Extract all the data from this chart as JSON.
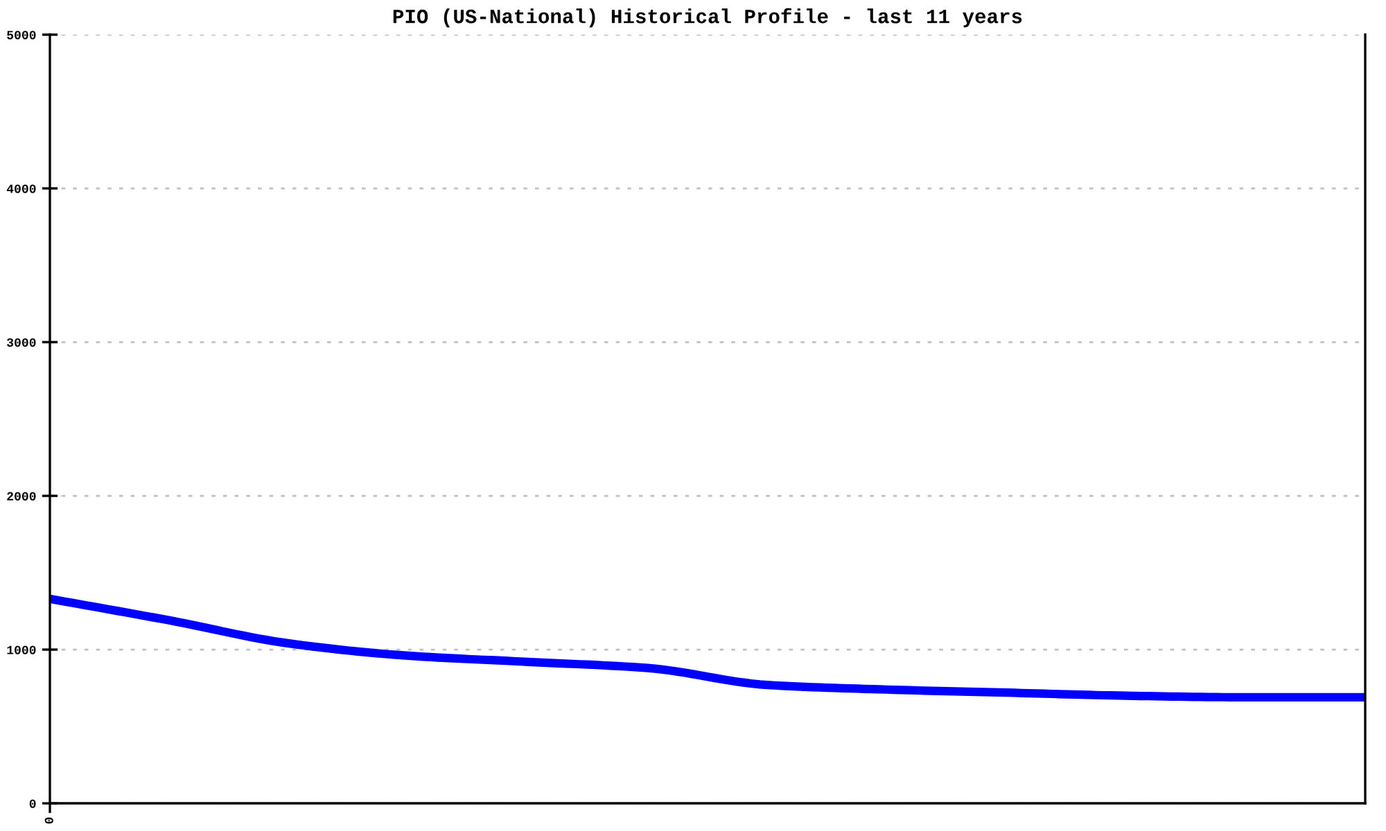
{
  "chart_data": {
    "type": "line",
    "title": "PIO (US-National) Historical Profile - last 11 years",
    "categories": [
      "0",
      null,
      null,
      null,
      null,
      null,
      null,
      null,
      null,
      null,
      null,
      null
    ],
    "series": [
      {
        "color": "#0000ff",
        "values": [
          1330,
          1190,
          1040,
          960,
          920,
          880,
          770,
          740,
          720,
          700,
          690,
          690
        ]
      }
    ],
    "ylim": [
      0,
      5000
    ],
    "yticks": [
      0,
      1000,
      2000,
      3000,
      4000,
      5000
    ],
    "grid": "y",
    "line_style": "solid"
  }
}
